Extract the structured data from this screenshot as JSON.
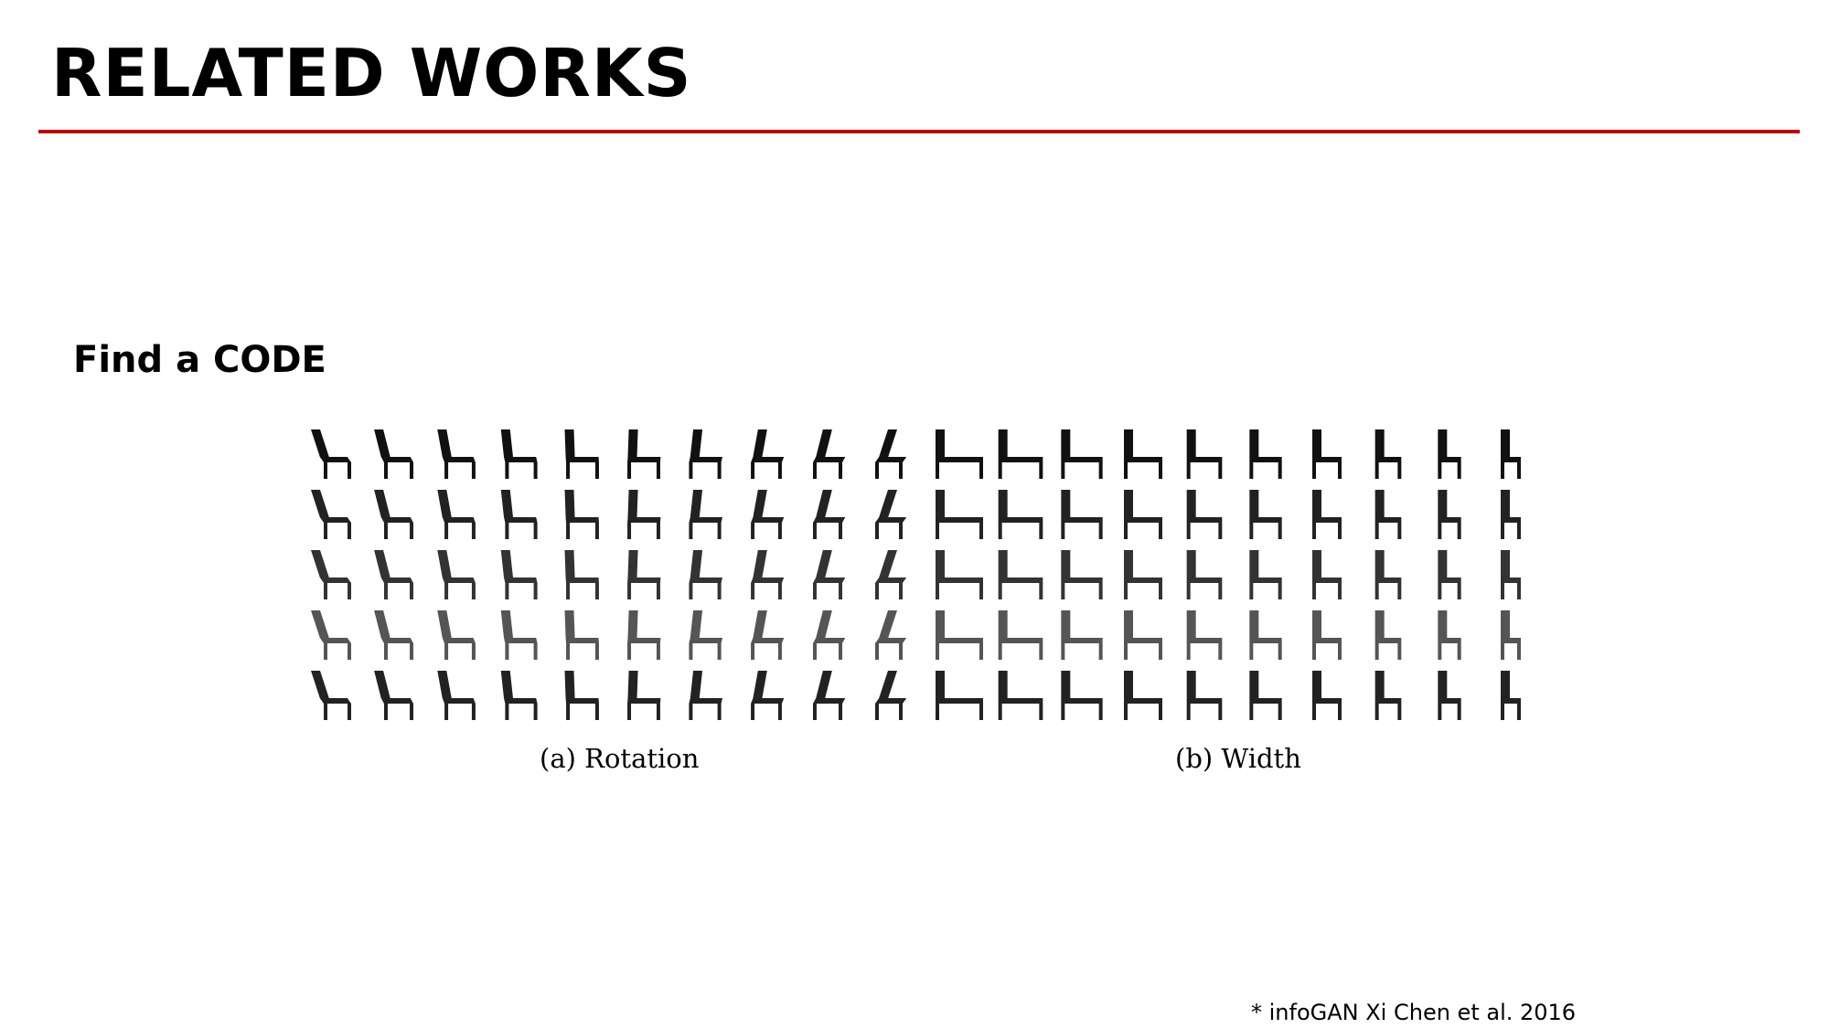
{
  "slide": {
    "title": "RELATED WORKS",
    "accent_color": "#c00000"
  },
  "section": {
    "heading": "Find a CODE"
  },
  "figure": {
    "panels": [
      {
        "caption": "(a) Rotation",
        "rows": 5,
        "cols": 10,
        "varies": "rotation"
      },
      {
        "caption": "(b) Width",
        "rows": 5,
        "cols": 10,
        "varies": "width"
      }
    ]
  },
  "footnote": "* infoGAN Xi Chen et al. 2016"
}
